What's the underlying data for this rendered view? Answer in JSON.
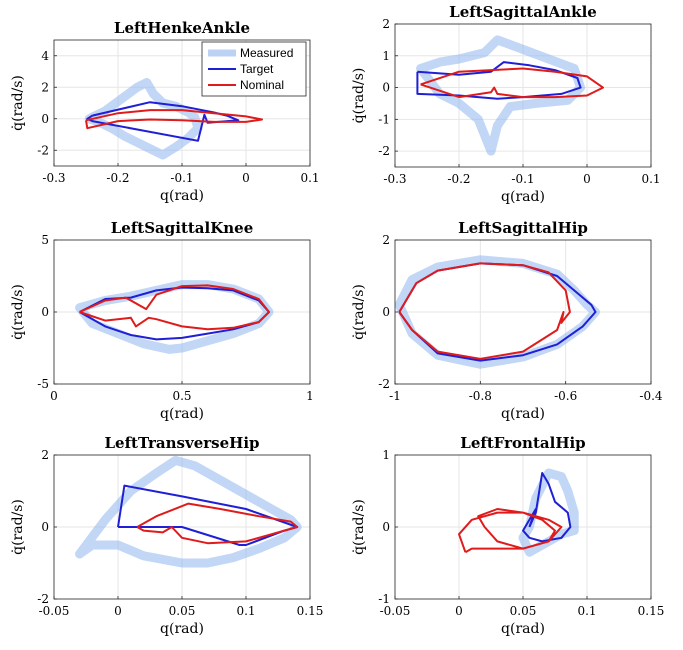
{
  "chart_data": [
    {
      "type": "line",
      "title": "LeftHenkeAnkle",
      "xlabel": "q(rad)",
      "ylabel": "q̇(rad/s)",
      "xlim": [
        -0.3,
        0.1
      ],
      "ylim": [
        -3,
        5
      ],
      "xticks": [
        -0.3,
        -0.2,
        -0.1,
        0,
        0.1
      ],
      "yticks": [
        -2,
        0,
        2,
        4
      ],
      "xtick_labels": [
        "-0.3",
        "-0.2",
        "-0.1",
        "0",
        "0.1"
      ],
      "ytick_labels": [
        "-2",
        "0",
        "2",
        "4"
      ],
      "grid": true,
      "legend": {
        "location": "top-right",
        "entries": [
          "Measured",
          "Target",
          "Nominal"
        ]
      },
      "series": [
        {
          "name": "Measured",
          "color": "#8fb4ee",
          "style": "band",
          "x": [
            -0.24,
            -0.22,
            -0.19,
            -0.17,
            -0.155,
            -0.145,
            -0.13,
            -0.11,
            -0.09,
            -0.08,
            -0.075,
            -0.09,
            -0.11,
            -0.13,
            -0.15,
            -0.17,
            -0.19,
            -0.21,
            -0.23,
            -0.245,
            -0.24
          ],
          "y": [
            0.1,
            0.5,
            1.4,
            2.0,
            2.3,
            1.6,
            1.0,
            0.8,
            0.4,
            0.1,
            -0.6,
            -1.2,
            -1.8,
            -2.3,
            -1.9,
            -1.5,
            -1.1,
            -0.6,
            -0.2,
            0.0,
            0.1
          ]
        },
        {
          "name": "Target",
          "color": "#1f1fd6",
          "x": [
            -0.24,
            -0.15,
            -0.1,
            -0.05,
            -0.03,
            -0.012,
            -0.06,
            -0.065,
            -0.075,
            -0.24,
            -0.248,
            -0.24
          ],
          "y": [
            0.2,
            1.05,
            0.8,
            0.4,
            0.2,
            -0.1,
            -0.25,
            0.25,
            -1.4,
            -0.15,
            0.0,
            0.2
          ]
        },
        {
          "name": "Nominal",
          "color": "#e01b1b",
          "x": [
            -0.25,
            -0.2,
            -0.15,
            -0.1,
            -0.05,
            0.0,
            0.025,
            0.0,
            -0.05,
            -0.1,
            -0.15,
            -0.2,
            -0.248,
            -0.25
          ],
          "y": [
            -0.1,
            0.35,
            0.55,
            0.55,
            0.35,
            0.15,
            -0.05,
            -0.2,
            -0.2,
            -0.1,
            -0.05,
            -0.15,
            -0.6,
            -0.1
          ]
        }
      ]
    },
    {
      "type": "line",
      "title": "LeftSagittalAnkle",
      "xlabel": "q(rad)",
      "ylabel": "q̇(rad/s)",
      "xlim": [
        -0.3,
        0.1
      ],
      "ylim": [
        -2.5,
        2
      ],
      "xticks": [
        -0.3,
        -0.2,
        -0.1,
        0,
        0.1
      ],
      "yticks": [
        -2,
        -1,
        0,
        1,
        2
      ],
      "xtick_labels": [
        "-0.3",
        "-0.2",
        "-0.1",
        "0",
        "0.1"
      ],
      "ytick_labels": [
        "-2",
        "-1",
        "0",
        "1",
        "2"
      ],
      "grid": true,
      "series": [
        {
          "name": "Measured",
          "color": "#8fb4ee",
          "style": "band",
          "x": [
            -0.26,
            -0.23,
            -0.2,
            -0.16,
            -0.14,
            -0.1,
            -0.06,
            -0.02,
            -0.01,
            -0.03,
            -0.08,
            -0.12,
            -0.14,
            -0.15,
            -0.17,
            -0.2,
            -0.23,
            -0.26
          ],
          "y": [
            0.6,
            0.8,
            0.9,
            1.1,
            1.5,
            1.2,
            0.9,
            0.6,
            0.0,
            -0.4,
            -0.5,
            -0.6,
            -1.2,
            -2.0,
            -1.0,
            -0.5,
            -0.2,
            0.6
          ]
        },
        {
          "name": "Target",
          "color": "#1f1fd6",
          "x": [
            -0.265,
            -0.2,
            -0.15,
            -0.13,
            -0.09,
            -0.05,
            -0.015,
            -0.01,
            -0.04,
            -0.1,
            -0.14,
            -0.2,
            -0.265,
            -0.265
          ],
          "y": [
            0.5,
            0.4,
            0.5,
            0.8,
            0.7,
            0.55,
            0.3,
            0.0,
            -0.2,
            -0.3,
            -0.35,
            -0.25,
            -0.2,
            0.5
          ]
        },
        {
          "name": "Nominal",
          "color": "#e01b1b",
          "x": [
            -0.26,
            -0.2,
            -0.15,
            -0.1,
            -0.05,
            0.0,
            0.025,
            0.0,
            -0.05,
            -0.1,
            -0.14,
            -0.145,
            -0.15,
            -0.2,
            -0.26
          ],
          "y": [
            0.1,
            0.5,
            0.55,
            0.6,
            0.5,
            0.35,
            0.0,
            -0.25,
            -0.3,
            -0.3,
            -0.2,
            0.0,
            -0.15,
            -0.3,
            0.1
          ]
        }
      ]
    },
    {
      "type": "line",
      "title": "LeftSagittalKnee",
      "xlabel": "q(rad)",
      "ylabel": "q̇(rad/s)",
      "xlim": [
        0,
        1
      ],
      "ylim": [
        -5,
        5
      ],
      "xticks": [
        0,
        0.5,
        1
      ],
      "yticks": [
        -5,
        0,
        5
      ],
      "xtick_labels": [
        "0",
        "0.5",
        "1"
      ],
      "ytick_labels": [
        "-5",
        "0",
        "5"
      ],
      "grid": true,
      "series": [
        {
          "name": "Measured",
          "color": "#8fb4ee",
          "style": "band",
          "x": [
            0.1,
            0.2,
            0.3,
            0.4,
            0.5,
            0.6,
            0.7,
            0.8,
            0.84,
            0.8,
            0.7,
            0.6,
            0.5,
            0.45,
            0.35,
            0.25,
            0.15,
            0.1
          ],
          "y": [
            0.3,
            0.8,
            1.1,
            1.5,
            1.9,
            1.9,
            1.6,
            0.9,
            0.0,
            -0.8,
            -1.5,
            -2.0,
            -2.5,
            -2.6,
            -2.2,
            -1.5,
            -0.8,
            0.3
          ]
        },
        {
          "name": "Target",
          "color": "#1f1fd6",
          "x": [
            0.1,
            0.2,
            0.3,
            0.4,
            0.5,
            0.6,
            0.7,
            0.8,
            0.84,
            0.8,
            0.7,
            0.6,
            0.5,
            0.4,
            0.3,
            0.2,
            0.1
          ],
          "y": [
            0.0,
            0.9,
            1.0,
            1.5,
            1.7,
            1.65,
            1.5,
            0.8,
            0.0,
            -0.7,
            -1.2,
            -1.5,
            -1.8,
            -1.9,
            -1.6,
            -1.0,
            0.0
          ]
        },
        {
          "name": "Nominal",
          "color": "#e01b1b",
          "x": [
            0.1,
            0.2,
            0.28,
            0.36,
            0.4,
            0.5,
            0.6,
            0.7,
            0.8,
            0.84,
            0.8,
            0.7,
            0.6,
            0.5,
            0.4,
            0.37,
            0.32,
            0.3,
            0.2,
            0.1
          ],
          "y": [
            0.0,
            0.8,
            1.0,
            0.2,
            1.2,
            1.8,
            1.85,
            1.6,
            0.9,
            0.0,
            -0.7,
            -1.1,
            -1.2,
            -1.0,
            -0.5,
            -0.4,
            -1.0,
            -0.4,
            -0.6,
            0.0
          ]
        }
      ]
    },
    {
      "type": "line",
      "title": "LeftSagittalHip",
      "xlabel": "q(rad)",
      "ylabel": "q̇(rad/s)",
      "xlim": [
        -1,
        -0.4
      ],
      "ylim": [
        -2,
        2
      ],
      "xticks": [
        -1,
        -0.8,
        -0.6,
        -0.4
      ],
      "yticks": [
        -2,
        0,
        2
      ],
      "xtick_labels": [
        "-1",
        "-0.8",
        "-0.6",
        "-0.4"
      ],
      "ytick_labels": [
        "-2",
        "0",
        "2"
      ],
      "grid": true,
      "series": [
        {
          "name": "Measured",
          "color": "#8fb4ee",
          "style": "band",
          "x": [
            -0.99,
            -0.96,
            -0.9,
            -0.8,
            -0.7,
            -0.62,
            -0.58,
            -0.55,
            -0.53,
            -0.56,
            -0.62,
            -0.7,
            -0.8,
            -0.9,
            -0.96,
            -0.99
          ],
          "y": [
            0.2,
            0.9,
            1.25,
            1.45,
            1.35,
            1.05,
            0.6,
            0.2,
            0.0,
            -0.4,
            -0.9,
            -1.25,
            -1.45,
            -1.2,
            -0.6,
            0.2
          ]
        },
        {
          "name": "Target",
          "color": "#1f1fd6",
          "x": [
            -0.99,
            -0.95,
            -0.9,
            -0.8,
            -0.7,
            -0.62,
            -0.57,
            -0.54,
            -0.53,
            -0.56,
            -0.62,
            -0.7,
            -0.8,
            -0.9,
            -0.96,
            -0.99
          ],
          "y": [
            0.0,
            0.8,
            1.15,
            1.35,
            1.3,
            1.0,
            0.5,
            0.2,
            0.0,
            -0.4,
            -0.9,
            -1.2,
            -1.35,
            -1.15,
            -0.5,
            0.0
          ]
        },
        {
          "name": "Nominal",
          "color": "#e01b1b",
          "x": [
            -0.99,
            -0.95,
            -0.9,
            -0.8,
            -0.7,
            -0.64,
            -0.6,
            -0.59,
            -0.61,
            -0.605,
            -0.62,
            -0.7,
            -0.8,
            -0.9,
            -0.96,
            -0.99
          ],
          "y": [
            0.0,
            0.8,
            1.15,
            1.35,
            1.3,
            1.1,
            0.6,
            0.0,
            -0.3,
            0.0,
            -0.5,
            -1.1,
            -1.3,
            -1.1,
            -0.5,
            0.0
          ]
        }
      ]
    },
    {
      "type": "line",
      "title": "LeftTransverseHip",
      "xlabel": "q(rad)",
      "ylabel": "q̇(rad/s)",
      "xlim": [
        -0.05,
        0.15
      ],
      "ylim": [
        -2,
        2
      ],
      "xticks": [
        -0.05,
        0,
        0.05,
        0.1,
        0.15
      ],
      "yticks": [
        -2,
        0,
        2
      ],
      "xtick_labels": [
        "-0.05",
        "0",
        "0.05",
        "0.1",
        "0.15"
      ],
      "ytick_labels": [
        "-2",
        "0",
        "2"
      ],
      "grid": true,
      "series": [
        {
          "name": "Measured",
          "color": "#8fb4ee",
          "style": "band",
          "x": [
            -0.03,
            -0.01,
            0.01,
            0.03,
            0.045,
            0.06,
            0.08,
            0.1,
            0.12,
            0.135,
            0.14,
            0.13,
            0.11,
            0.09,
            0.07,
            0.05,
            0.02,
            0.0,
            -0.02,
            -0.03
          ],
          "y": [
            -0.75,
            0.2,
            1.0,
            1.5,
            1.85,
            1.7,
            1.3,
            0.9,
            0.5,
            0.2,
            0.0,
            -0.3,
            -0.6,
            -0.85,
            -1.0,
            -1.0,
            -0.8,
            -0.5,
            -0.5,
            -0.75
          ]
        },
        {
          "name": "Target",
          "color": "#1f1fd6",
          "x": [
            0.0,
            0.005,
            0.05,
            0.1,
            0.14,
            0.13,
            0.1,
            0.095,
            0.05,
            0.0
          ],
          "y": [
            0.0,
            1.15,
            0.85,
            0.5,
            0.0,
            -0.1,
            -0.5,
            -0.5,
            0.0,
            0.0
          ]
        },
        {
          "name": "Nominal",
          "color": "#e01b1b",
          "x": [
            0.015,
            0.03,
            0.055,
            0.08,
            0.11,
            0.135,
            0.14,
            0.12,
            0.1,
            0.07,
            0.05,
            0.042,
            0.035,
            0.02,
            0.015
          ],
          "y": [
            0.0,
            0.3,
            0.65,
            0.5,
            0.3,
            0.15,
            0.0,
            -0.2,
            -0.4,
            -0.45,
            -0.3,
            0.0,
            -0.15,
            -0.1,
            0.0
          ]
        }
      ]
    },
    {
      "type": "line",
      "title": "LeftFrontalHip",
      "xlabel": "q(rad)",
      "ylabel": "q̇(rad/s)",
      "xlim": [
        -0.05,
        0.15
      ],
      "ylim": [
        -1,
        1
      ],
      "xticks": [
        -0.05,
        0,
        0.05,
        0.1,
        0.15
      ],
      "yticks": [
        -1,
        0,
        1
      ],
      "xtick_labels": [
        "-0.05",
        "0",
        "0.05",
        "0.1",
        "0.15"
      ],
      "ytick_labels": [
        "-1",
        "0",
        "1"
      ],
      "grid": true,
      "series": [
        {
          "name": "Measured",
          "color": "#8fb4ee",
          "style": "band",
          "x": [
            0.055,
            0.06,
            0.07,
            0.08,
            0.085,
            0.09,
            0.09,
            0.08,
            0.07,
            0.06,
            0.055,
            0.05,
            0.055
          ],
          "y": [
            0.0,
            0.4,
            0.75,
            0.7,
            0.5,
            0.2,
            -0.05,
            -0.1,
            -0.2,
            -0.3,
            -0.35,
            -0.15,
            0.0
          ]
        },
        {
          "name": "Target",
          "color": "#1f1fd6",
          "x": [
            0.055,
            0.06,
            0.065,
            0.07,
            0.075,
            0.085,
            0.087,
            0.08,
            0.065,
            0.055,
            0.05,
            0.06,
            0.055
          ],
          "y": [
            0.0,
            0.2,
            0.75,
            0.6,
            0.35,
            0.2,
            0.0,
            -0.15,
            -0.2,
            -0.15,
            -0.05,
            0.25,
            0.0
          ]
        },
        {
          "name": "Nominal",
          "color": "#e01b1b",
          "x": [
            0.005,
            0.0,
            0.01,
            0.03,
            0.05,
            0.065,
            0.075,
            0.07,
            0.05,
            0.03,
            0.02,
            0.015,
            0.03,
            0.05,
            0.07,
            0.08,
            0.07,
            0.05,
            0.03,
            0.01,
            0.005
          ],
          "y": [
            -0.35,
            -0.1,
            0.1,
            0.2,
            0.2,
            0.1,
            -0.05,
            -0.2,
            -0.3,
            -0.2,
            0.0,
            0.15,
            0.25,
            0.2,
            0.1,
            0.0,
            -0.2,
            -0.3,
            -0.3,
            -0.3,
            -0.35
          ]
        }
      ]
    }
  ]
}
